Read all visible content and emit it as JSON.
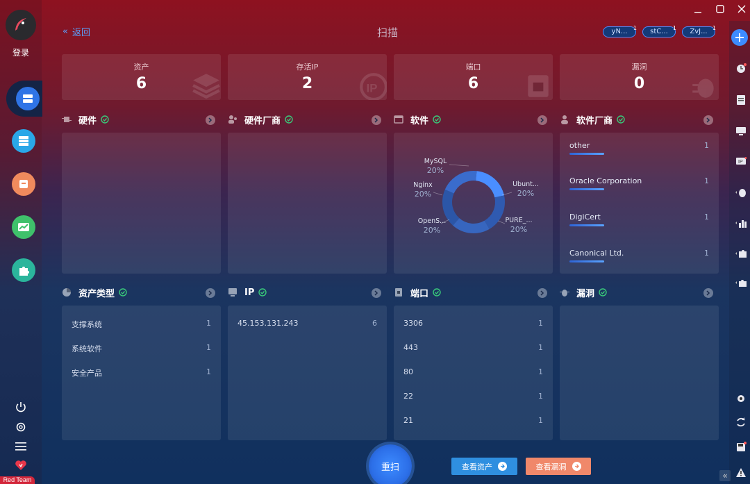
{
  "sidebar": {
    "login_label": "登录",
    "redteam_label": "Red Team"
  },
  "header": {
    "back_label": "返回",
    "title": "扫描",
    "tags": [
      {
        "label": "yN...",
        "count": "1"
      },
      {
        "label": "stC...",
        "count": "1"
      },
      {
        "label": "ZvJ...",
        "count": "1"
      }
    ]
  },
  "stats": [
    {
      "label": "资产",
      "value": "6"
    },
    {
      "label": "存活IP",
      "value": "2"
    },
    {
      "label": "端口",
      "value": "6"
    },
    {
      "label": "漏洞",
      "value": "0"
    }
  ],
  "panels": {
    "hardware": {
      "title": "硬件"
    },
    "hardware_vendor": {
      "title": "硬件厂商"
    },
    "software": {
      "title": "软件"
    },
    "software_vendor": {
      "title": "软件厂商",
      "items": [
        {
          "name": "other",
          "count": "1"
        },
        {
          "name": "Oracle Corporation",
          "count": "1"
        },
        {
          "name": "DigiCert",
          "count": "1"
        },
        {
          "name": "Canonical Ltd.",
          "count": "1"
        }
      ]
    },
    "asset_type": {
      "title": "资产类型",
      "items": [
        {
          "name": "支撑系统",
          "count": "1"
        },
        {
          "name": "系统软件",
          "count": "1"
        },
        {
          "name": "安全产品",
          "count": "1"
        }
      ]
    },
    "ip": {
      "title": "IP",
      "items": [
        {
          "name": "45.153.131.243",
          "count": "6"
        }
      ]
    },
    "port": {
      "title": "端口",
      "items": [
        {
          "name": "3306",
          "count": "1"
        },
        {
          "name": "443",
          "count": "1"
        },
        {
          "name": "80",
          "count": "1"
        },
        {
          "name": "22",
          "count": "1"
        },
        {
          "name": "21",
          "count": "1"
        }
      ]
    },
    "vuln": {
      "title": "漏洞"
    }
  },
  "chart_data": {
    "type": "pie",
    "categories": [
      "MySQL",
      "Ubunt...",
      "PURE_...",
      "OpenS...",
      "Nginx"
    ],
    "values": [
      20,
      20,
      20,
      20,
      20
    ],
    "value_labels": [
      "20%",
      "20%",
      "20%",
      "20%",
      "20%"
    ],
    "colors": [
      "#4a8eff",
      "#2f5ab0",
      "#3766bf",
      "#2b56a8",
      "#3a6ccc"
    ]
  },
  "actions": {
    "rescan_label": "重扫",
    "view_assets_label": "查看资产",
    "view_vulns_label": "查看漏洞"
  },
  "colors": {
    "accent": "#4a8eff",
    "success": "#39c97a",
    "view_assets_bg": "#2f8fe0",
    "view_vulns_bg": "#f0886a"
  }
}
